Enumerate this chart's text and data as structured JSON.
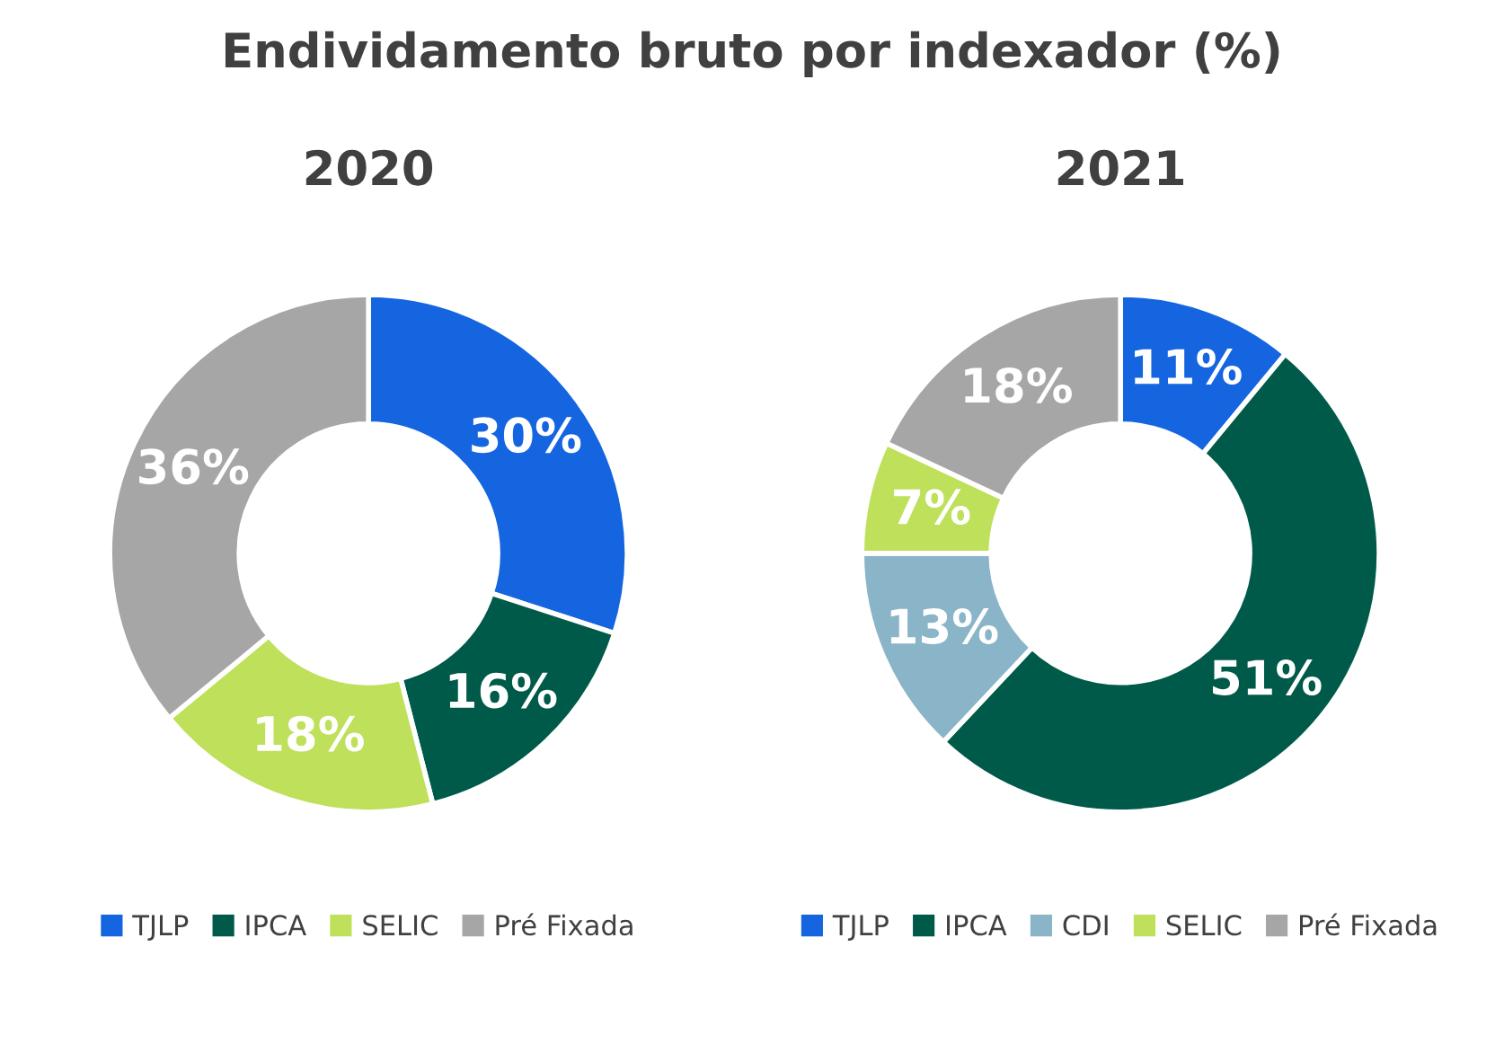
{
  "chart_data": [
    {
      "type": "donut",
      "title": "Endividamento bruto por indexador (%)",
      "subtitle": "2020",
      "categories": [
        "TJLP",
        "IPCA",
        "SELIC",
        "Pré Fixada"
      ],
      "values": [
        30,
        16,
        18,
        36
      ],
      "colors": [
        "#1565e0",
        "#005a4a",
        "#bfe05a",
        "#a6a6a6"
      ],
      "value_labels": [
        "30%",
        "16%",
        "18%",
        "36%"
      ],
      "legend": "bottom"
    },
    {
      "type": "donut",
      "title": "2021",
      "categories": [
        "TJLP",
        "IPCA",
        "CDI",
        "SELIC",
        "Pré Fixada"
      ],
      "values": [
        11,
        51,
        13,
        7,
        18
      ],
      "colors": [
        "#1565e0",
        "#005a4a",
        "#8ab4c8",
        "#bfe05a",
        "#a6a6a6"
      ],
      "value_labels": [
        "11%",
        "51%",
        "13%",
        "7%",
        "18%"
      ],
      "legend": "bottom"
    }
  ]
}
